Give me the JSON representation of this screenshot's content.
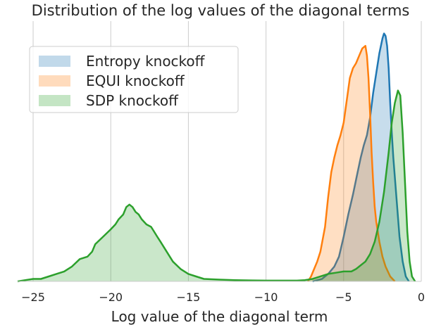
{
  "chart_data": {
    "type": "area",
    "title": "Distribution of the log values of the diagonal terms",
    "xlabel": "Log value of the diagonal term",
    "ylabel": "",
    "xlim": [
      -26,
      0
    ],
    "ylim": [
      0,
      1.05
    ],
    "grid": "vertical",
    "legend_position": "upper-left",
    "x_ticks": [
      {
        "value": -25,
        "label": "−25"
      },
      {
        "value": -20,
        "label": "−20"
      },
      {
        "value": -15,
        "label": "−15"
      },
      {
        "value": -10,
        "label": "−10"
      },
      {
        "value": -5,
        "label": "−5"
      },
      {
        "value": 0,
        "label": "0"
      }
    ],
    "series": [
      {
        "name": "Entropy knockoff",
        "color": "#1f77b4",
        "points": [
          [
            -7.0,
            0.0
          ],
          [
            -6.4,
            0.01
          ],
          [
            -6.0,
            0.03
          ],
          [
            -5.6,
            0.06
          ],
          [
            -5.3,
            0.1
          ],
          [
            -5.0,
            0.18
          ],
          [
            -4.7,
            0.27
          ],
          [
            -4.4,
            0.35
          ],
          [
            -4.1,
            0.44
          ],
          [
            -3.9,
            0.5
          ],
          [
            -3.7,
            0.55
          ],
          [
            -3.5,
            0.59
          ],
          [
            -3.3,
            0.66
          ],
          [
            -3.1,
            0.76
          ],
          [
            -2.9,
            0.84
          ],
          [
            -2.7,
            0.92
          ],
          [
            -2.5,
            0.98
          ],
          [
            -2.4,
            1.0
          ],
          [
            -2.3,
            0.99
          ],
          [
            -2.2,
            0.95
          ],
          [
            -2.1,
            0.86
          ],
          [
            -2.0,
            0.72
          ],
          [
            -1.9,
            0.6
          ],
          [
            -1.8,
            0.5
          ],
          [
            -1.7,
            0.42
          ],
          [
            -1.6,
            0.34
          ],
          [
            -1.4,
            0.18
          ],
          [
            -1.2,
            0.08
          ],
          [
            -1.0,
            0.02
          ],
          [
            -0.8,
            0.0
          ]
        ]
      },
      {
        "name": "EQUI knockoff",
        "color": "#ff7f0e",
        "points": [
          [
            -7.3,
            0.0
          ],
          [
            -7.1,
            0.02
          ],
          [
            -6.9,
            0.05
          ],
          [
            -6.7,
            0.08
          ],
          [
            -6.5,
            0.12
          ],
          [
            -6.2,
            0.22
          ],
          [
            -6.0,
            0.34
          ],
          [
            -5.8,
            0.44
          ],
          [
            -5.6,
            0.5
          ],
          [
            -5.4,
            0.55
          ],
          [
            -5.2,
            0.59
          ],
          [
            -5.0,
            0.64
          ],
          [
            -4.8,
            0.73
          ],
          [
            -4.6,
            0.82
          ],
          [
            -4.4,
            0.86
          ],
          [
            -4.2,
            0.88
          ],
          [
            -4.0,
            0.91
          ],
          [
            -3.8,
            0.94
          ],
          [
            -3.6,
            0.95
          ],
          [
            -3.5,
            0.91
          ],
          [
            -3.4,
            0.82
          ],
          [
            -3.3,
            0.68
          ],
          [
            -3.2,
            0.52
          ],
          [
            -3.1,
            0.4
          ],
          [
            -3.0,
            0.3
          ],
          [
            -2.9,
            0.24
          ],
          [
            -2.7,
            0.16
          ],
          [
            -2.5,
            0.1
          ],
          [
            -2.3,
            0.06
          ],
          [
            -2.0,
            0.02
          ],
          [
            -1.7,
            0.0
          ]
        ]
      },
      {
        "name": "SDP knockoff",
        "color": "#2ca02c",
        "points": [
          [
            -26.0,
            0.0
          ],
          [
            -25.5,
            0.005
          ],
          [
            -25.0,
            0.01
          ],
          [
            -24.5,
            0.01
          ],
          [
            -24.0,
            0.02
          ],
          [
            -23.5,
            0.03
          ],
          [
            -23.0,
            0.04
          ],
          [
            -22.5,
            0.06
          ],
          [
            -22.0,
            0.09
          ],
          [
            -21.5,
            0.1
          ],
          [
            -21.2,
            0.12
          ],
          [
            -21.0,
            0.15
          ],
          [
            -20.5,
            0.18
          ],
          [
            -20.0,
            0.21
          ],
          [
            -19.7,
            0.23
          ],
          [
            -19.5,
            0.25
          ],
          [
            -19.2,
            0.27
          ],
          [
            -19.0,
            0.3
          ],
          [
            -18.8,
            0.31
          ],
          [
            -18.6,
            0.3
          ],
          [
            -18.4,
            0.28
          ],
          [
            -18.2,
            0.27
          ],
          [
            -18.0,
            0.25
          ],
          [
            -17.7,
            0.23
          ],
          [
            -17.4,
            0.22
          ],
          [
            -17.2,
            0.2
          ],
          [
            -17.0,
            0.18
          ],
          [
            -16.8,
            0.16
          ],
          [
            -16.5,
            0.13
          ],
          [
            -16.0,
            0.08
          ],
          [
            -15.5,
            0.05
          ],
          [
            -15.0,
            0.03
          ],
          [
            -14.5,
            0.02
          ],
          [
            -14.0,
            0.01
          ],
          [
            -13.0,
            0.007
          ],
          [
            -12.0,
            0.005
          ],
          [
            -11.0,
            0.004
          ],
          [
            -10.0,
            0.003
          ],
          [
            -9.0,
            0.003
          ],
          [
            -8.0,
            0.003
          ],
          [
            -7.5,
            0.005
          ],
          [
            -7.0,
            0.01
          ],
          [
            -6.5,
            0.02
          ],
          [
            -6.0,
            0.03
          ],
          [
            -5.5,
            0.035
          ],
          [
            -5.0,
            0.04
          ],
          [
            -4.5,
            0.04
          ],
          [
            -4.2,
            0.05
          ],
          [
            -4.0,
            0.06
          ],
          [
            -3.6,
            0.08
          ],
          [
            -3.3,
            0.11
          ],
          [
            -3.0,
            0.16
          ],
          [
            -2.7,
            0.24
          ],
          [
            -2.4,
            0.36
          ],
          [
            -2.1,
            0.52
          ],
          [
            -1.9,
            0.64
          ],
          [
            -1.7,
            0.72
          ],
          [
            -1.5,
            0.77
          ],
          [
            -1.35,
            0.75
          ],
          [
            -1.2,
            0.6
          ],
          [
            -1.05,
            0.4
          ],
          [
            -0.9,
            0.2
          ],
          [
            -0.75,
            0.08
          ],
          [
            -0.6,
            0.02
          ],
          [
            -0.4,
            0.0
          ]
        ]
      }
    ]
  }
}
